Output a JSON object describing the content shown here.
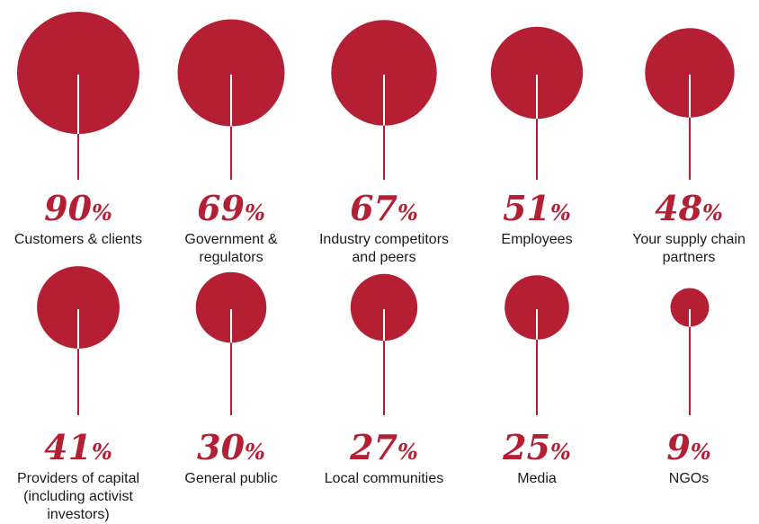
{
  "chart_data": {
    "type": "bubble",
    "unit": "%",
    "accent_color": "#b41f33",
    "items": [
      {
        "label": "Customers & clients",
        "value": 90,
        "value_text": "90"
      },
      {
        "label": "Government & regulators",
        "value": 69,
        "value_text": "69"
      },
      {
        "label": "Industry competitors and peers",
        "value": 67,
        "value_text": "67"
      },
      {
        "label": "Employees",
        "value": 51,
        "value_text": "51"
      },
      {
        "label": "Your supply chain partners",
        "value": 48,
        "value_text": "48"
      },
      {
        "label": "Providers of capital (including activist investors)",
        "value": 41,
        "value_text": "41"
      },
      {
        "label": "General public",
        "value": 30,
        "value_text": "30"
      },
      {
        "label": "Local communities",
        "value": 27,
        "value_text": "27"
      },
      {
        "label": "Media",
        "value": 25,
        "value_text": "25"
      },
      {
        "label": "NGOs",
        "value": 9,
        "value_text": "9"
      }
    ]
  }
}
